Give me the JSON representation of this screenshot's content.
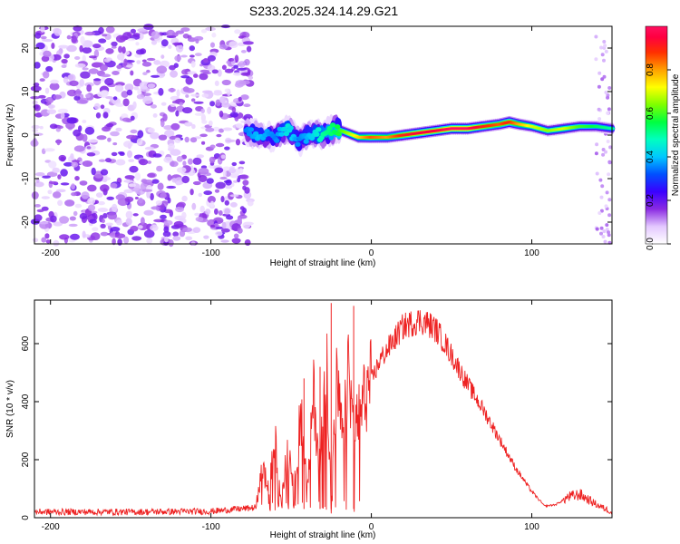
{
  "title": "S233.2025.324.14.29.G21",
  "chart_data": [
    {
      "type": "heatmap",
      "xlabel": "Height of straight line (km)",
      "ylabel": "Frequency (Hz)",
      "xlim": [
        -210,
        150
      ],
      "ylim": [
        -25,
        25
      ],
      "xticks": [
        -200,
        -100,
        0,
        100
      ],
      "yticks": [
        -20,
        -10,
        0,
        10,
        20
      ],
      "noise_region_km": [
        -210,
        -75
      ],
      "signal_track": {
        "x": [
          -78,
          -70,
          -60,
          -52,
          -45,
          -38,
          -30,
          -22,
          -15,
          -8,
          0,
          10,
          20,
          30,
          40,
          50,
          60,
          70,
          80,
          86,
          92,
          100,
          110,
          120,
          130,
          140,
          150
        ],
        "freq": [
          1,
          0,
          -0.5,
          1.5,
          -1.5,
          0.5,
          0,
          1.5,
          0.5,
          -0.5,
          -0.5,
          -0.5,
          0,
          0.5,
          1,
          1.5,
          1.5,
          2,
          2.5,
          3,
          2.5,
          2,
          1,
          1.5,
          2,
          2,
          1.5
        ],
        "amplitude": [
          0.35,
          0.4,
          0.35,
          0.45,
          0.35,
          0.4,
          0.5,
          0.55,
          0.65,
          0.75,
          0.85,
          0.8,
          0.9,
          0.95,
          0.95,
          1.0,
          1.0,
          0.9,
          0.85,
          0.9,
          0.8,
          0.7,
          0.65,
          0.7,
          0.6,
          0.55,
          0.5
        ]
      },
      "colorbar": {
        "label": "Normalized spectral amplitude",
        "ticks": [
          "0.0",
          "0.2",
          "0.4",
          "0.6",
          "0.8"
        ],
        "range": [
          0,
          1
        ]
      }
    },
    {
      "type": "line",
      "xlabel": "Height of straight line (km)",
      "ylabel": "SNR (10 * v/v)",
      "xlim": [
        -210,
        150
      ],
      "ylim": [
        0,
        750
      ],
      "xticks": [
        -200,
        -100,
        0,
        100
      ],
      "yticks": [
        0,
        200,
        400,
        600
      ],
      "series": [
        {
          "name": "SNR",
          "color": "#ee2222",
          "x": [
            -210,
            -150,
            -100,
            -72,
            -68,
            -64,
            -60,
            -56,
            -52,
            -48,
            -44,
            -40,
            -36,
            -32,
            -28,
            -25,
            -22,
            -18,
            -14,
            -11,
            -8,
            -4,
            0,
            5,
            10,
            15,
            20,
            25,
            30,
            35,
            40,
            45,
            50,
            60,
            70,
            80,
            90,
            100,
            108,
            115,
            122,
            130,
            136,
            142,
            150
          ],
          "values": [
            20,
            20,
            22,
            35,
            180,
            90,
            260,
            60,
            240,
            120,
            380,
            90,
            420,
            170,
            610,
            20,
            470,
            280,
            500,
            310,
            350,
            420,
            470,
            540,
            580,
            620,
            660,
            670,
            680,
            670,
            650,
            610,
            560,
            460,
            370,
            270,
            170,
            90,
            40,
            45,
            70,
            80,
            60,
            40,
            20
          ],
          "spikes": [
            {
              "x": -25,
              "value": 740
            },
            {
              "x": -11,
              "value": 730
            },
            {
              "x": -32,
              "value": 520
            },
            {
              "x": -42,
              "value": 480
            }
          ]
        }
      ]
    }
  ]
}
